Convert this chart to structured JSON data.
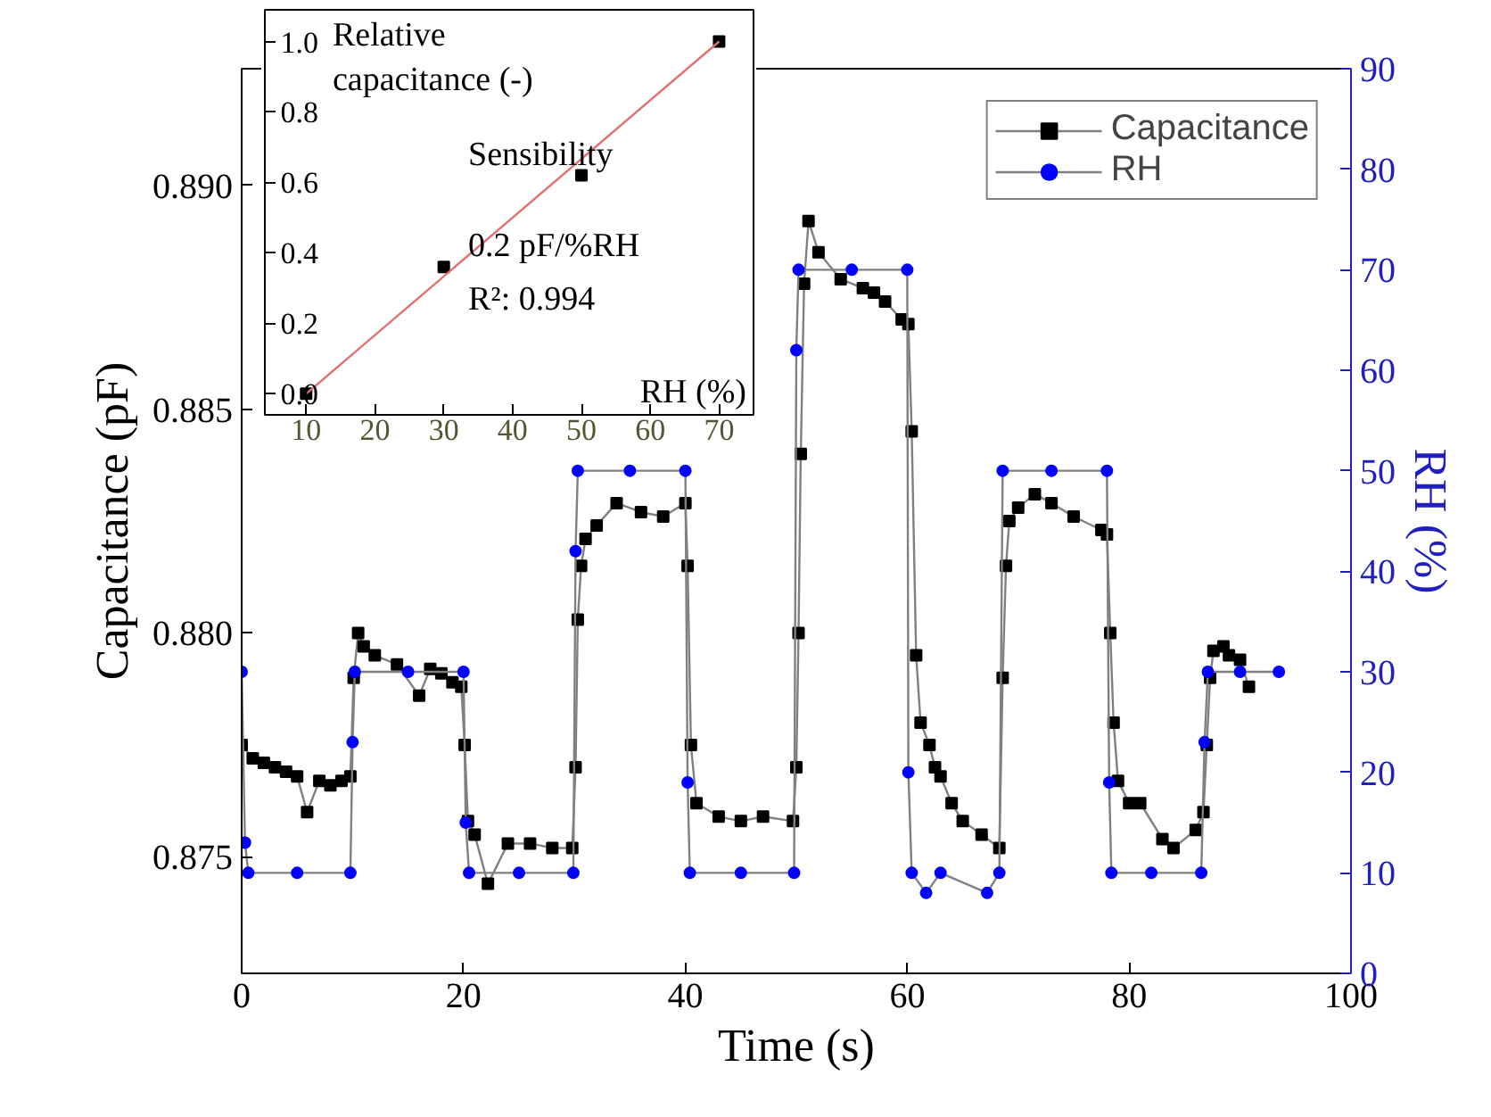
{
  "chart_data": [
    {
      "type": "line",
      "xlabel": "Time (s)",
      "ylabel": "Capacitance (pF)",
      "y2label": "RH (%)",
      "xlim": [
        0,
        100
      ],
      "xticks": [
        0,
        20,
        40,
        60,
        80,
        100
      ],
      "ylim": [
        0.8724,
        0.8926
      ],
      "yticks": [
        {
          "value": 0.875,
          "label": "0.875"
        },
        {
          "value": 0.88,
          "label": "0.880"
        },
        {
          "value": 0.885,
          "label": "0.885"
        },
        {
          "value": 0.89,
          "label": "0.890"
        }
      ],
      "y2lim": [
        0,
        90
      ],
      "y2ticks": [
        0,
        10,
        20,
        30,
        40,
        50,
        60,
        70,
        80,
        90
      ],
      "grid": false,
      "legend": "top right",
      "series": [
        {
          "name": "Capacitance",
          "color": "#000000",
          "marker": "square",
          "x": [
            0,
            1,
            2,
            3,
            4,
            5,
            5.9,
            7,
            8,
            9,
            9.8,
            10.1,
            10.5,
            11,
            12,
            14,
            16,
            17,
            18,
            19,
            19.8,
            20.1,
            20.4,
            21,
            22.2,
            24,
            26,
            28,
            29.8,
            30.1,
            30.3,
            30.6,
            31,
            32,
            33.8,
            36,
            38,
            40,
            40.2,
            40.5,
            41,
            43,
            45,
            47,
            49.7,
            50.0,
            50.2,
            50.4,
            50.7,
            51.1,
            52,
            54,
            56,
            57,
            58,
            59.5,
            60.1,
            60.4,
            60.8,
            61.2,
            62,
            62.5,
            63,
            64,
            65,
            66.7,
            68.3,
            68.6,
            68.9,
            69.2,
            70,
            71.5,
            73,
            75,
            77.5,
            78.0,
            78.3,
            78.6,
            79,
            80,
            81,
            83,
            84,
            86,
            86.7,
            87.0,
            87.3,
            87.6,
            88.5,
            89,
            90,
            90.8
          ],
          "values": [
            0.8775,
            0.8772,
            0.8771,
            0.877,
            0.8769,
            0.8768,
            0.876,
            0.8767,
            0.8766,
            0.8767,
            0.8768,
            0.879,
            0.88,
            0.8797,
            0.8795,
            0.8793,
            0.8786,
            0.8792,
            0.8791,
            0.8789,
            0.8788,
            0.8775,
            0.8758,
            0.8755,
            0.8744,
            0.8753,
            0.8753,
            0.8752,
            0.8752,
            0.877,
            0.8803,
            0.8815,
            0.8821,
            0.8824,
            0.8829,
            0.8827,
            0.8826,
            0.8829,
            0.8815,
            0.8775,
            0.8762,
            0.8759,
            0.8758,
            0.8759,
            0.8758,
            0.877,
            0.88,
            0.884,
            0.8878,
            0.8892,
            0.8885,
            0.8879,
            0.8877,
            0.8876,
            0.8874,
            0.887,
            0.8869,
            0.8845,
            0.8795,
            0.878,
            0.8775,
            0.877,
            0.8768,
            0.8762,
            0.8758,
            0.8755,
            0.8752,
            0.879,
            0.8815,
            0.8825,
            0.8828,
            0.8831,
            0.8829,
            0.8826,
            0.8823,
            0.8822,
            0.88,
            0.878,
            0.8767,
            0.8762,
            0.8762,
            0.8754,
            0.8752,
            0.8756,
            0.876,
            0.8775,
            0.879,
            0.8796,
            0.8797,
            0.8795,
            0.8794,
            0.8788
          ]
        },
        {
          "name": "RH",
          "color": "#0000ff",
          "marker": "circle",
          "axis": "y2",
          "x": [
            0,
            0.3,
            0.6,
            5,
            9.8,
            10.0,
            10.2,
            15,
            20.0,
            20.2,
            20.5,
            25,
            29.9,
            30.1,
            30.3,
            35,
            40.0,
            40.2,
            40.4,
            45,
            49.8,
            50.0,
            50.2,
            55,
            60.0,
            60.1,
            60.4,
            61.7,
            63,
            67.2,
            68.3,
            68.6,
            73,
            78.0,
            78.2,
            78.4,
            82,
            86.5,
            86.8,
            87.1,
            90,
            93.5
          ],
          "values": [
            30,
            13,
            10,
            10,
            10,
            23,
            30,
            30,
            30,
            15,
            10,
            10,
            10,
            42,
            50,
            50,
            50,
            19,
            10,
            10,
            10,
            62,
            70,
            70,
            70,
            20,
            10,
            8,
            10,
            8,
            10,
            50,
            50,
            50,
            19,
            10,
            10,
            10,
            23,
            30,
            30,
            30
          ]
        }
      ]
    },
    {
      "type": "scatter",
      "xlabel": "RH (%)",
      "ylabel": "Relative capacitance (-)",
      "xlim": [
        4,
        75
      ],
      "xticks": [
        10,
        20,
        30,
        40,
        50,
        60,
        70
      ],
      "ylim": [
        -0.06,
        1.09
      ],
      "yticks": [
        {
          "value": 0,
          "label": "0.0"
        },
        {
          "value": 0.2,
          "label": "0.2"
        },
        {
          "value": 0.4,
          "label": "0.4"
        },
        {
          "value": 0.6,
          "label": "0.6"
        },
        {
          "value": 0.8,
          "label": "0.8"
        },
        {
          "value": 1.0,
          "label": "1.0"
        }
      ],
      "grid": false,
      "annotations": [
        "Sensibility",
        "0.2 pF/%RH",
        "R²: 0.994"
      ],
      "series": [
        {
          "color": "#000000",
          "marker": "square",
          "x": [
            10,
            30,
            50,
            70
          ],
          "values": [
            0,
            0.36,
            0.62,
            1.0
          ]
        },
        {
          "type": "line",
          "color": "#e07070",
          "x": [
            10,
            70
          ],
          "values": [
            0,
            1.0
          ]
        }
      ]
    }
  ]
}
